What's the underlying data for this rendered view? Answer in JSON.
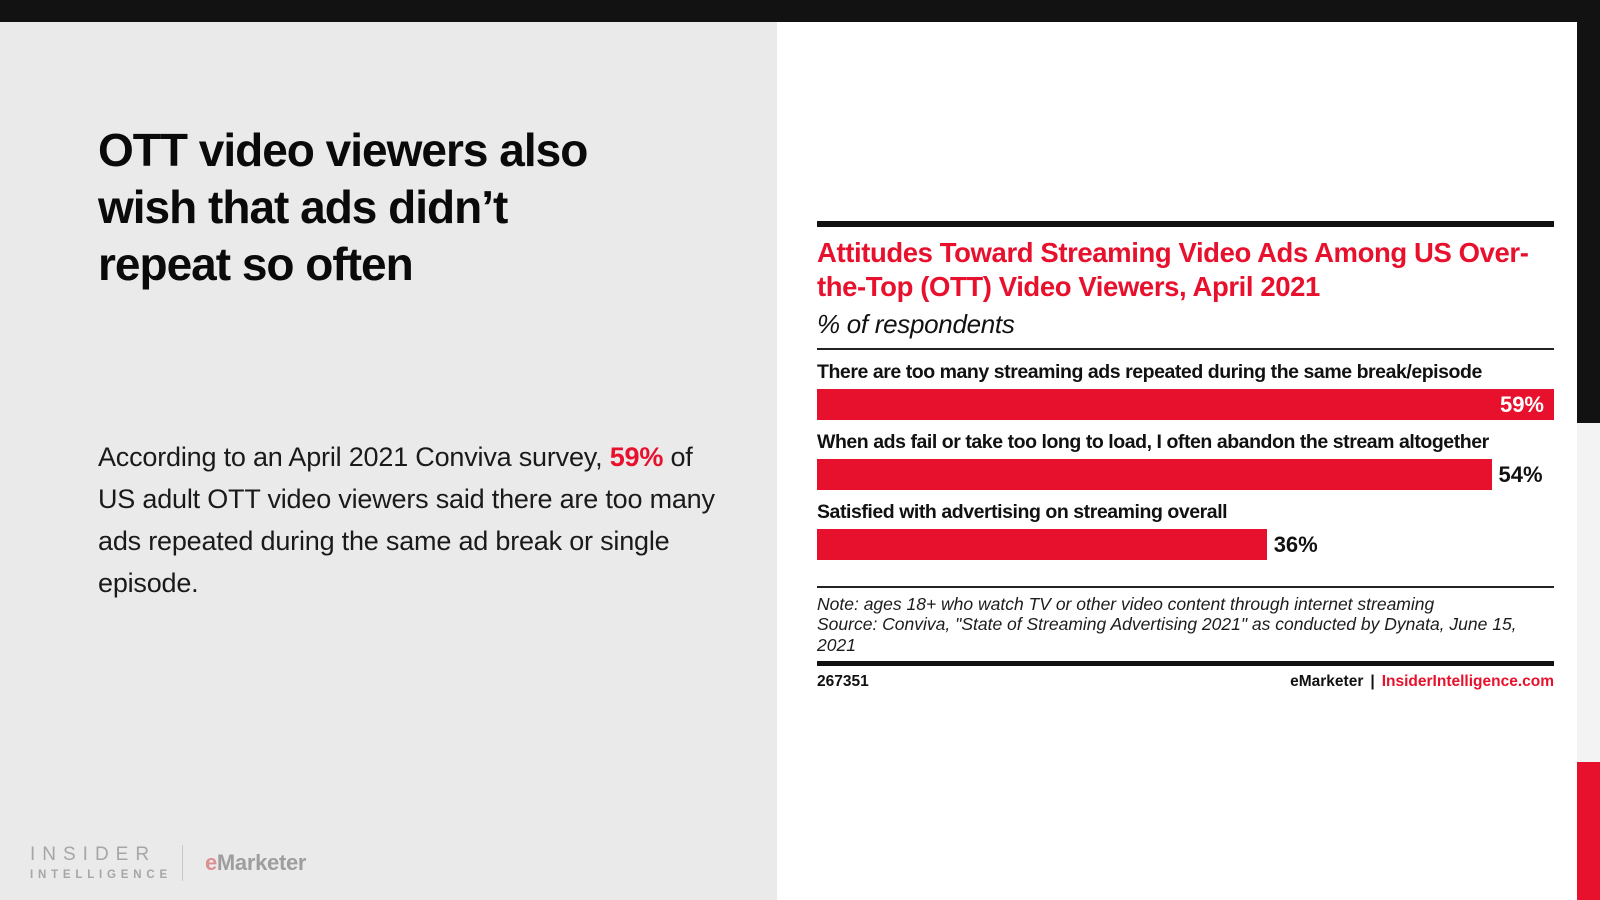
{
  "left_panel": {
    "headline_lines": [
      "OTT video viewers also",
      "wish that ads didn’t",
      "repeat so often"
    ],
    "body": {
      "before": "According to an April 2021 Conviva survey, ",
      "highlight": "59%",
      "after": " of US adult OTT video viewers said there are too many ads repeated during the same ad break or single episode."
    },
    "footer_logo": {
      "insider_line1": "INSIDER",
      "insider_line2": "INTELLIGENCE",
      "emarketer_e": "e",
      "emarketer_rest": "Marketer"
    }
  },
  "chart_data": {
    "type": "bar",
    "orientation": "horizontal",
    "title": "Attitudes Toward Streaming Video Ads Among US Over-the-Top (OTT) Video Viewers, April 2021",
    "subtitle": "% of respondents",
    "categories": [
      "There are too many streaming ads repeated during the same break/episode",
      "When ads fail or take too long to load, I often abandon the stream altogether",
      "Satisfied with advertising on streaming overall"
    ],
    "values": [
      59,
      54,
      36
    ],
    "value_labels": [
      "59%",
      "54%",
      "36%"
    ],
    "xlim": [
      0,
      59
    ],
    "grid": false,
    "legend": "none",
    "note": "Note: ages 18+ who watch TV or other video content through internet streaming",
    "source": "Source: Conviva, \"State of Streaming Advertising 2021\" as conducted by Dynata, June 15, 2021",
    "chart_id": "267351",
    "footer_brand": "eMarketer",
    "footer_separator": "|",
    "footer_site": "InsiderIntelligence.com"
  },
  "colors": {
    "accent_red": "#e8112d",
    "top_bar_black": "#121212",
    "left_panel_gray": "#eaeaea",
    "right_strip_gray": "#f3f3f4",
    "white_panel": "#ffffff",
    "logo_gray": "#a6a6a6",
    "logo_e_pink": "#dd8f93"
  }
}
